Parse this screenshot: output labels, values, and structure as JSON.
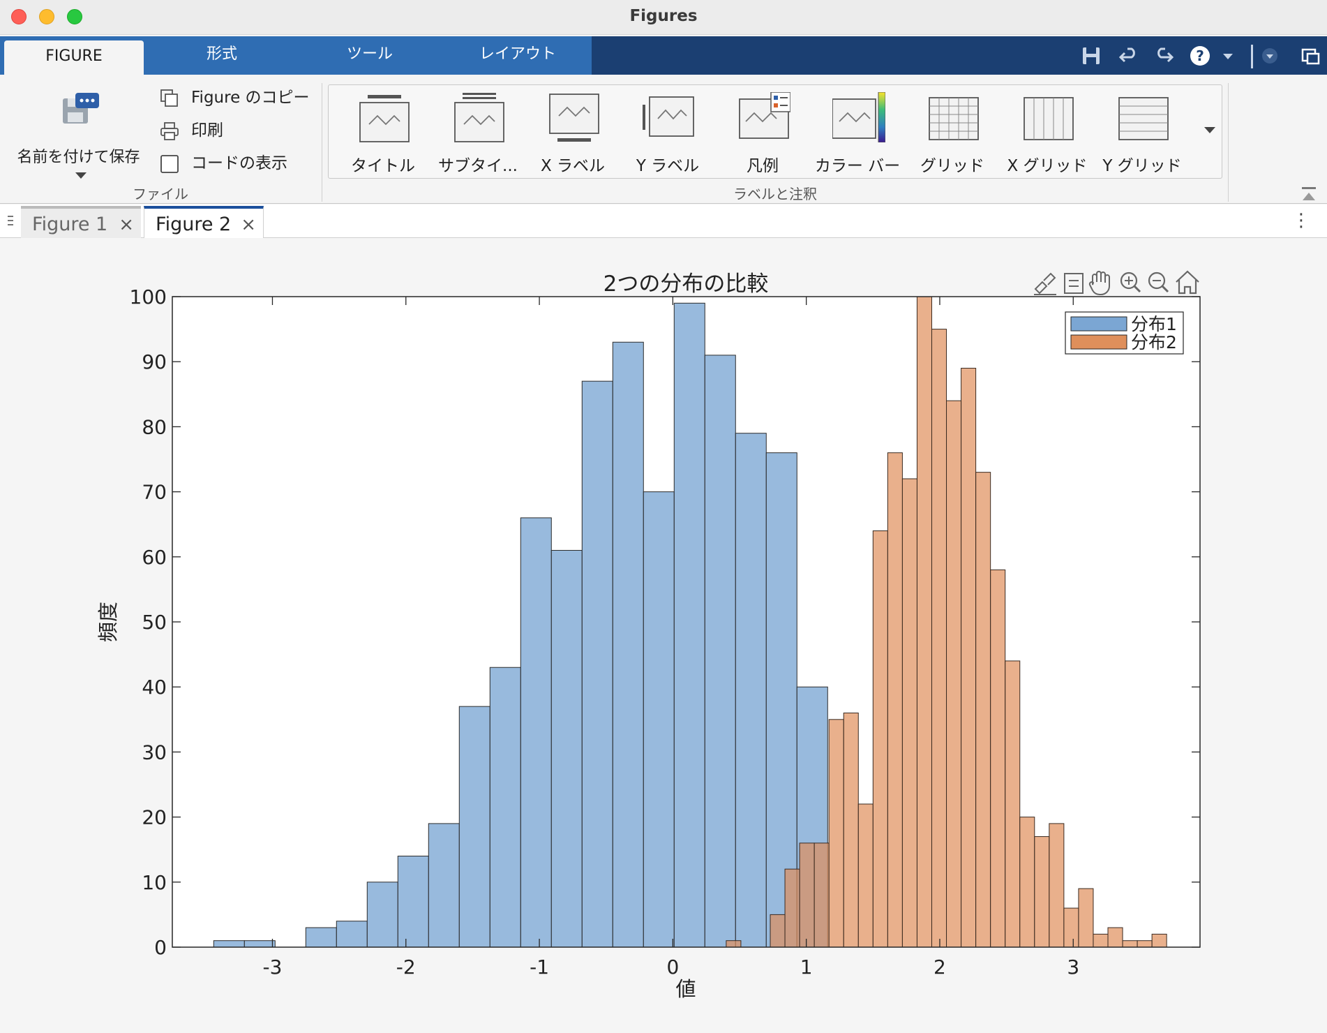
{
  "window": {
    "title": "Figures"
  },
  "ribbon_tabs": [
    {
      "label": "FIGURE",
      "active": true
    },
    {
      "label": "形式",
      "active": false
    },
    {
      "label": "ツール",
      "active": false
    },
    {
      "label": "レイアウト",
      "active": false
    }
  ],
  "quick_access": [
    "save-icon",
    "undo-icon",
    "redo-icon",
    "help-icon",
    "chevron-down-icon",
    "dropdown-circle-icon",
    "window-icon"
  ],
  "file_group": {
    "label": "ファイル",
    "save_as": "名前を付けて保存",
    "copy_figure": "Figure のコピー",
    "print": "印刷",
    "show_code": "コードの表示"
  },
  "labels_group": {
    "label": "ラベルと注釈",
    "items": [
      "タイトル",
      "サブタイ...",
      "X ラベル",
      "Y ラベル",
      "凡例",
      "カラー バー",
      "グリッド",
      "X グリッド",
      "Y グリッド"
    ]
  },
  "doc_tabs": [
    {
      "label": "Figure 1",
      "active": false
    },
    {
      "label": "Figure 2",
      "active": true
    }
  ],
  "axes_toolbar": [
    "brush-icon",
    "datatip-icon",
    "pan-hand-icon",
    "zoom-in-icon",
    "zoom-out-icon",
    "home-icon"
  ],
  "colors": {
    "series1": "#7ba6d3",
    "series2": "#df8f5b",
    "ribbon_blue": "#2f6db3",
    "ribbon_dark": "#1b3f72"
  },
  "chart_data": {
    "type": "bar",
    "title": "2つの分布の比較",
    "xlabel": "値",
    "ylabel": "頻度",
    "xlim": [
      -3.75,
      3.95
    ],
    "ylim": [
      0,
      100
    ],
    "xticks": [
      -3,
      -2,
      -1,
      0,
      1,
      2,
      3
    ],
    "yticks": [
      0,
      10,
      20,
      30,
      40,
      50,
      60,
      70,
      80,
      90,
      100
    ],
    "legend_position": "top-right",
    "series": [
      {
        "name": "分布1",
        "color": "#7ba6d3",
        "bin_edges": [
          -3.44,
          -3.21,
          -2.98,
          -2.75,
          -2.52,
          -2.29,
          -2.06,
          -1.83,
          -1.6,
          -1.37,
          -1.14,
          -0.91,
          -0.68,
          -0.45,
          -0.22,
          0.01,
          0.24,
          0.47,
          0.7,
          0.93,
          1.16
        ],
        "counts": [
          1,
          1,
          0,
          3,
          4,
          10,
          14,
          19,
          37,
          43,
          66,
          61,
          87,
          93,
          70,
          99,
          91,
          79,
          76,
          40
        ]
      },
      {
        "name": "分布2",
        "color": "#df8f5b",
        "bin_edges": [
          0.4,
          0.51,
          0.62,
          0.73,
          0.84,
          0.95,
          1.06,
          1.17,
          1.28,
          1.39,
          1.5,
          1.61,
          1.72,
          1.83,
          1.94,
          2.05,
          2.16,
          2.27,
          2.38,
          2.49,
          2.6,
          2.71,
          2.82,
          2.93,
          3.04,
          3.15,
          3.26,
          3.37,
          3.48,
          3.59,
          3.7,
          3.81
        ],
        "counts": [
          1,
          0,
          0,
          5,
          12,
          16,
          16,
          35,
          36,
          22,
          64,
          76,
          72,
          100,
          95,
          84,
          89,
          73,
          58,
          44,
          20,
          17,
          19,
          6,
          9,
          2,
          3,
          1,
          1,
          2,
          0
        ]
      }
    ]
  }
}
